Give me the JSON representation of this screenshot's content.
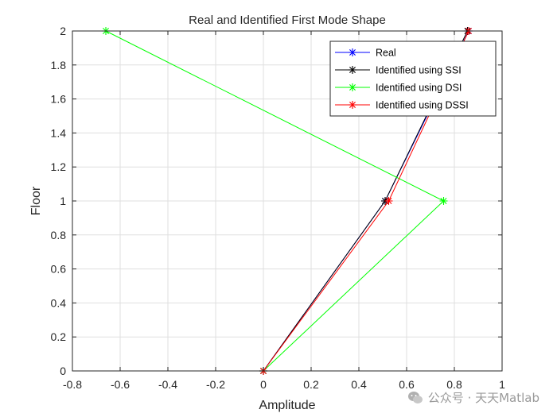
{
  "chart_data": {
    "type": "line",
    "title": "Real and Identified First Mode Shape",
    "xlabel": "Amplitude",
    "ylabel": "Floor",
    "xlim": [
      -0.8,
      1
    ],
    "ylim": [
      0,
      2
    ],
    "xticks": [
      -0.8,
      -0.6,
      -0.4,
      -0.2,
      0,
      0.2,
      0.4,
      0.6,
      0.8,
      1
    ],
    "yticks": [
      0,
      0.2,
      0.4,
      0.6,
      0.8,
      1,
      1.2,
      1.4,
      1.6,
      1.8,
      2
    ],
    "xtick_labels": [
      "-0.8",
      "-0.6",
      "-0.4",
      "-0.2",
      "0",
      "0.2",
      "0.4",
      "0.6",
      "0.8",
      "1"
    ],
    "ytick_labels": [
      "0",
      "0.2",
      "0.4",
      "0.6",
      "0.8",
      "1",
      "1.2",
      "1.4",
      "1.6",
      "1.8",
      "2"
    ],
    "grid": true,
    "legend_position": "top-right",
    "marker": "*",
    "series": [
      {
        "name": "Real",
        "color": "#0000ff",
        "x": [
          0,
          0.51,
          0.86
        ],
        "y": [
          0,
          1,
          2
        ]
      },
      {
        "name": "Identified using SSI",
        "color": "#000000",
        "x": [
          0,
          0.51,
          0.855
        ],
        "y": [
          0,
          1,
          2
        ]
      },
      {
        "name": "Identified using DSI",
        "color": "#00ff00",
        "x": [
          0,
          0.755,
          -0.66
        ],
        "y": [
          0,
          1,
          2
        ]
      },
      {
        "name": "Identified using DSSI",
        "color": "#ff0000",
        "x": [
          0,
          0.525,
          0.86
        ],
        "y": [
          0,
          1,
          2
        ]
      }
    ]
  },
  "watermark": {
    "icon": "wechat-icon",
    "text": "公众号 · 天天Matlab"
  }
}
